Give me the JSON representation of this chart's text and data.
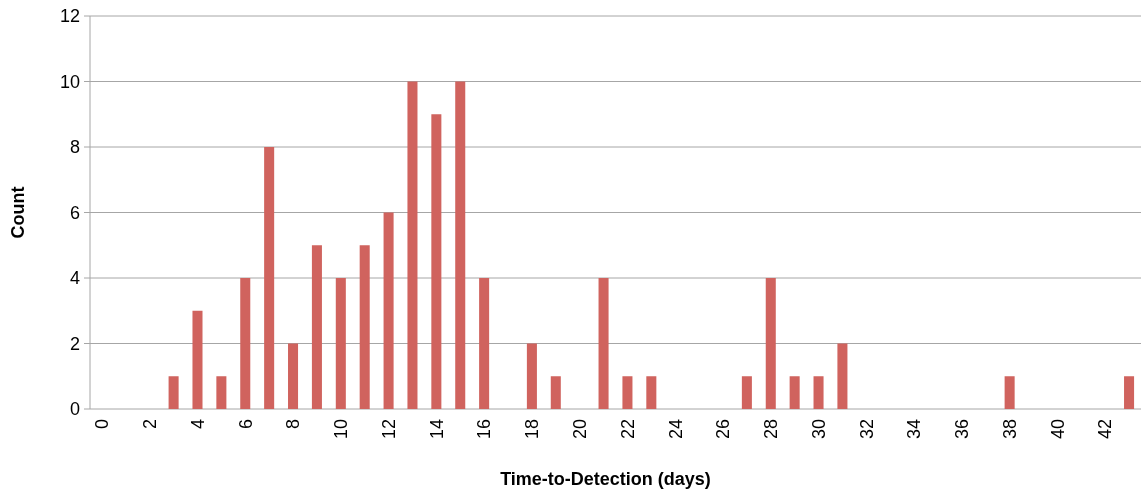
{
  "chart_data": {
    "type": "bar",
    "xlabel": "Time-to-Detection (days)",
    "ylabel": "Count",
    "categories": [
      "0",
      null,
      "2",
      null,
      "4",
      null,
      "6",
      null,
      "8",
      null,
      "10",
      null,
      "12",
      null,
      "14",
      null,
      "16",
      null,
      "18",
      null,
      "20",
      null,
      "22",
      null,
      "24",
      null,
      "26",
      null,
      "28",
      null,
      "30",
      null,
      "32",
      null,
      "34",
      null,
      "36",
      null,
      "38",
      null,
      "40",
      null,
      "42",
      null
    ],
    "values": [
      0,
      0,
      0,
      1,
      3,
      1,
      4,
      8,
      2,
      5,
      4,
      5,
      6,
      10,
      9,
      10,
      4,
      0,
      2,
      1,
      0,
      4,
      1,
      1,
      0,
      0,
      0,
      1,
      4,
      1,
      1,
      2,
      0,
      0,
      0,
      0,
      0,
      0,
      1,
      0,
      0,
      0,
      0,
      1
    ],
    "color": "#d0635e",
    "ylim": [
      0,
      12
    ],
    "yticks": [
      0,
      2,
      4,
      6,
      8,
      10,
      12
    ],
    "grid": "y"
  }
}
